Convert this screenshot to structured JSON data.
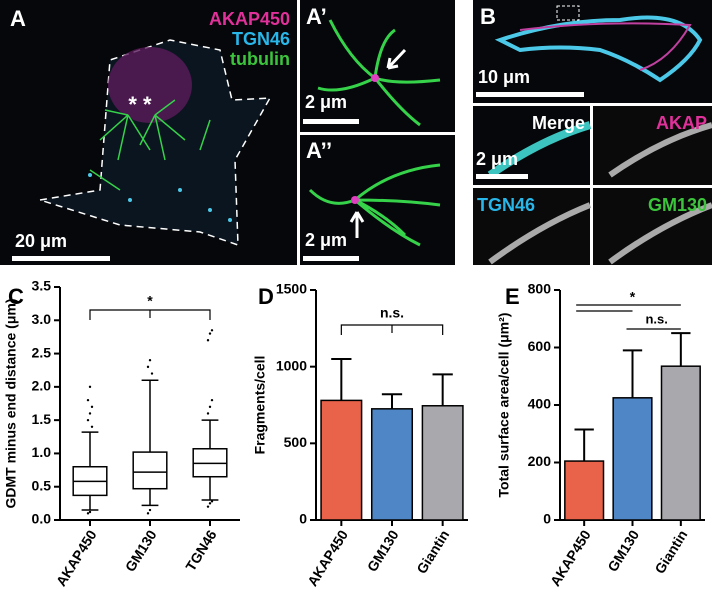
{
  "panels": {
    "A": {
      "letter": "A",
      "legend": [
        "AKAP450",
        "TGN46",
        "tubulin"
      ],
      "scale": "20 μm",
      "marks": "* *"
    },
    "A1": {
      "letter": "A’",
      "scale": "2 μm"
    },
    "A2": {
      "letter": "A’’",
      "scale": "2 μm"
    },
    "B": {
      "letter": "B",
      "scale": "10 μm",
      "inset_scale": "2 μm",
      "channels": [
        "Merge",
        "AKAP",
        "TGN46",
        "GM130"
      ]
    }
  },
  "chart_data": [
    {
      "type": "box",
      "letter": "C",
      "y_label": "GDMT minus end distance (μm)",
      "categories": [
        "AKAP450",
        "GM130",
        "TGN46"
      ],
      "stats": [
        {
          "whislo": 0.15,
          "q1": 0.37,
          "med": 0.58,
          "q3": 0.8,
          "whishi": 1.32,
          "outliers": [
            0.1,
            0.12,
            1.4,
            1.5,
            1.6,
            1.7,
            1.8,
            2.0
          ]
        },
        {
          "whislo": 0.22,
          "q1": 0.47,
          "med": 0.72,
          "q3": 1.02,
          "whishi": 2.1,
          "outliers": [
            0.1,
            0.15,
            2.2,
            2.3,
            2.4
          ]
        },
        {
          "whislo": 0.3,
          "q1": 0.65,
          "med": 0.85,
          "q3": 1.07,
          "whishi": 1.5,
          "outliers": [
            0.2,
            0.25,
            0.28,
            1.6,
            1.7,
            1.8,
            2.7,
            2.8,
            2.85
          ]
        }
      ],
      "color": "#ffffff",
      "ylim": [
        0,
        3.5
      ],
      "yticks": [
        {
          "value": 0,
          "label": "0.0"
        },
        0.5,
        {
          "value": 1,
          "label": "1.0"
        },
        1.5,
        {
          "value": 2,
          "label": "2.0"
        },
        2.5,
        {
          "value": 3,
          "label": "3.0"
        },
        3.5
      ],
      "annotations": [
        "*"
      ]
    },
    {
      "type": "bar",
      "letter": "D",
      "y_label": "Fragments/cell",
      "categories": [
        "AKAP450",
        "GM130",
        "Giantin"
      ],
      "values": [
        780,
        725,
        745
      ],
      "errors": [
        270,
        95,
        205
      ],
      "colors": [
        "#e8634a",
        "#4f86c6",
        "#a9a9ad"
      ],
      "ylim": [
        0,
        1500
      ],
      "yticks": [
        0,
        500,
        1000,
        1500
      ],
      "annotations": [
        "n.s."
      ]
    },
    {
      "type": "bar",
      "letter": "E",
      "y_label": "Total surface area/cell (μm²)",
      "categories": [
        "AKAP450",
        "GM130",
        "Giantin"
      ],
      "values": [
        205,
        425,
        535
      ],
      "errors": [
        110,
        165,
        115
      ],
      "colors": [
        "#e8634a",
        "#4f86c6",
        "#a9a9ad"
      ],
      "ylim": [
        0,
        800
      ],
      "yticks": [
        0,
        200,
        400,
        600,
        800
      ],
      "annotations": [
        "*",
        "n.s."
      ]
    }
  ]
}
